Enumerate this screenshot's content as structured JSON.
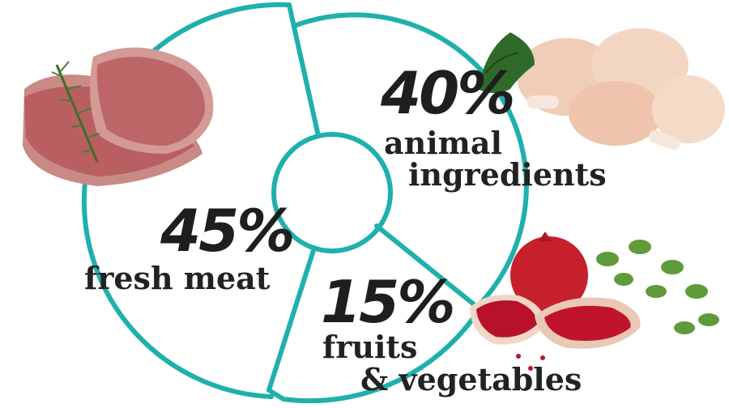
{
  "chart_data": {
    "type": "pie",
    "categories": [
      "fresh meat",
      "animal ingredients",
      "fruits & vegetables"
    ],
    "values": [
      45,
      40,
      15
    ],
    "labels": [
      {
        "percent": "45%",
        "line1": "fresh meat",
        "line2": ""
      },
      {
        "percent": "40%",
        "line1": "animal",
        "line2": "ingredients"
      },
      {
        "percent": "15%",
        "line1": "fruits",
        "line2": "& vegetables"
      }
    ],
    "title": "",
    "legend": "none",
    "colors": {
      "ring": "#1fb0ad",
      "text": "#222222"
    },
    "illustrations": [
      "raw-meat-with-rosemary",
      "chicken-drumsticks-with-parsley",
      "pomegranate-with-oregano"
    ]
  }
}
